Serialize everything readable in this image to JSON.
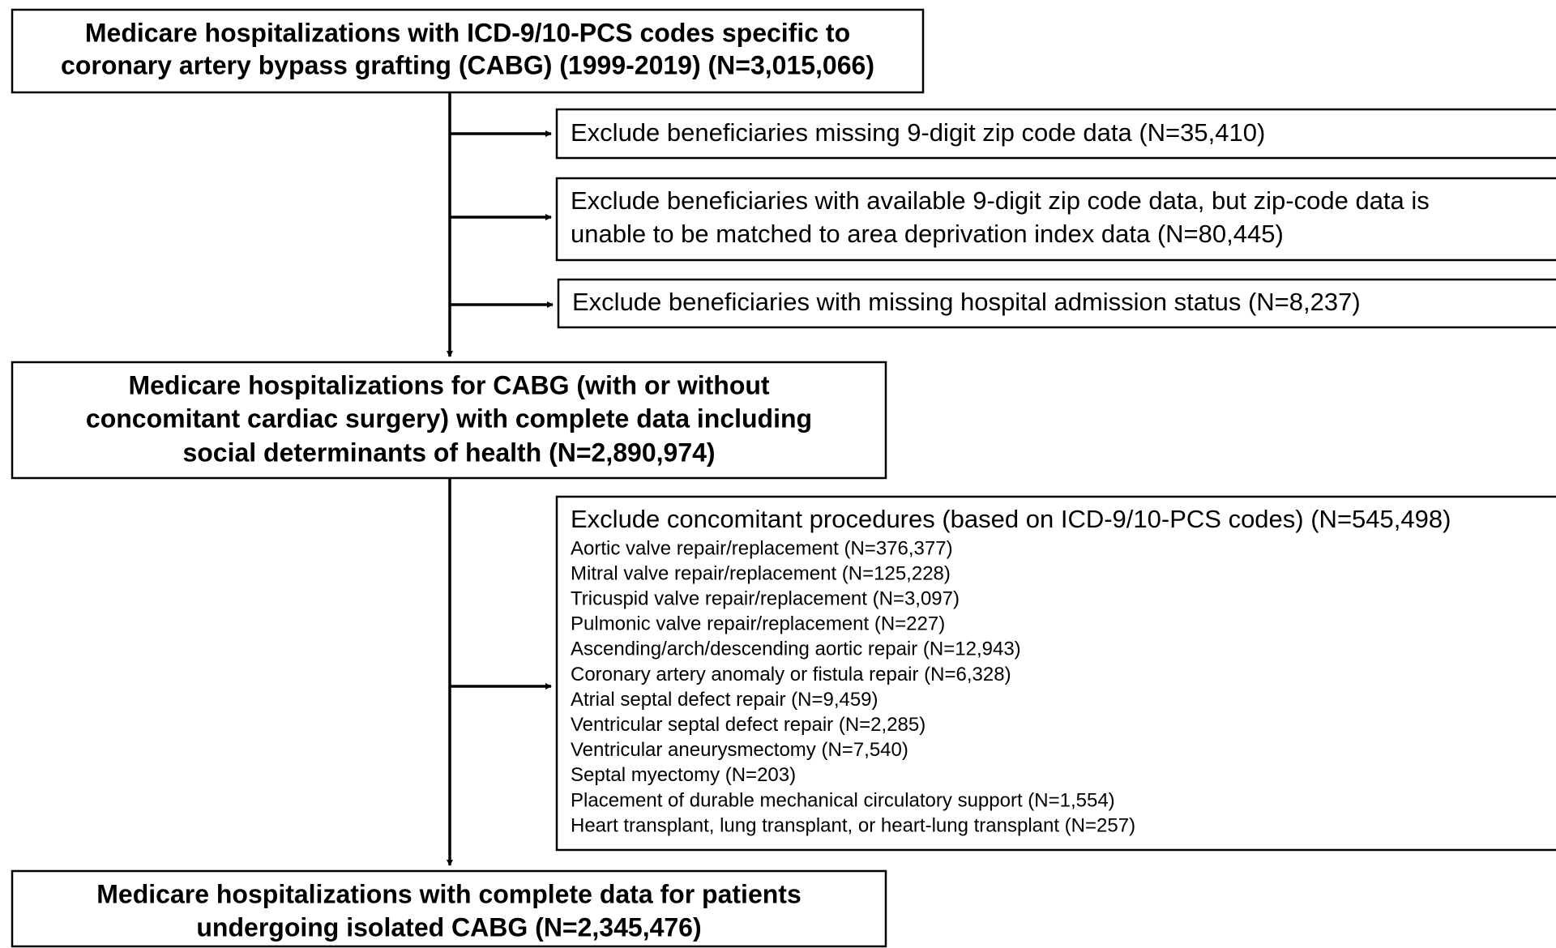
{
  "flowchart": {
    "main_boxes": [
      {
        "lines": [
          "Medicare hospitalizations with ICD-9/10-PCS codes specific to",
          "coronary artery bypass grafting (CABG) (1999-2019) (N=3,015,066)"
        ]
      },
      {
        "lines": [
          "Medicare hospitalizations for CABG (with or without",
          "concomitant cardiac surgery) with complete data including",
          "social determinants of health (N=2,890,974)"
        ]
      },
      {
        "lines": [
          "Medicare hospitalizations with complete data for patients",
          "undergoing isolated CABG (N=2,345,476)"
        ]
      }
    ],
    "exclusions": [
      {
        "lines": [
          "Exclude beneficiaries missing 9-digit zip code data (N=35,410)"
        ]
      },
      {
        "lines": [
          "Exclude beneficiaries with available 9-digit zip code data, but zip-code data is",
          "unable to be matched to area deprivation index data (N=80,445)"
        ]
      },
      {
        "lines": [
          "Exclude beneficiaries with missing hospital admission status (N=8,237)"
        ]
      },
      {
        "lines": [
          "Exclude concomitant procedures (based on ICD-9/10-PCS codes) (N=545,498)"
        ],
        "items": [
          "Aortic valve repair/replacement (N=376,377)",
          "Mitral valve repair/replacement (N=125,228)",
          "Tricuspid valve repair/replacement (N=3,097)",
          "Pulmonic valve repair/replacement (N=227)",
          "Ascending/arch/descending aortic repair (N=12,943)",
          "Coronary artery anomaly or fistula repair (N=6,328)",
          "Atrial septal defect repair (N=9,459)",
          "Ventricular septal defect repair (N=2,285)",
          "Ventricular aneurysmectomy (N=7,540)",
          "Septal myectomy (N=203)",
          "Placement of durable mechanical circulatory support (N=1,554)",
          "Heart transplant, lung transplant, or heart-lung transplant (N=257)"
        ]
      }
    ]
  }
}
